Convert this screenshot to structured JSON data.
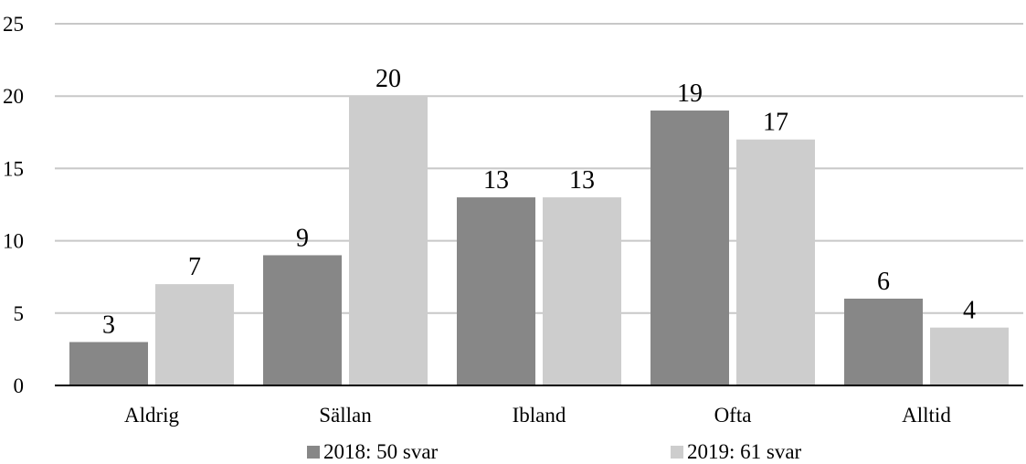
{
  "chart_data": {
    "type": "bar",
    "categories": [
      "Aldrig",
      "Sällan",
      "Ibland",
      "Ofta",
      "Alltid"
    ],
    "series": [
      {
        "name": "2018: 50 svar",
        "values": [
          3,
          9,
          13,
          19,
          6
        ],
        "color": "#878787"
      },
      {
        "name": "2019: 61 svar",
        "values": [
          7,
          20,
          13,
          17,
          4
        ],
        "color": "#cdcdcd"
      }
    ],
    "yticks": [
      "0",
      "5",
      "10",
      "15",
      "20",
      "25"
    ],
    "ylim": [
      0,
      25
    ],
    "grid": true,
    "legend": "bottom",
    "data_labels": true
  }
}
